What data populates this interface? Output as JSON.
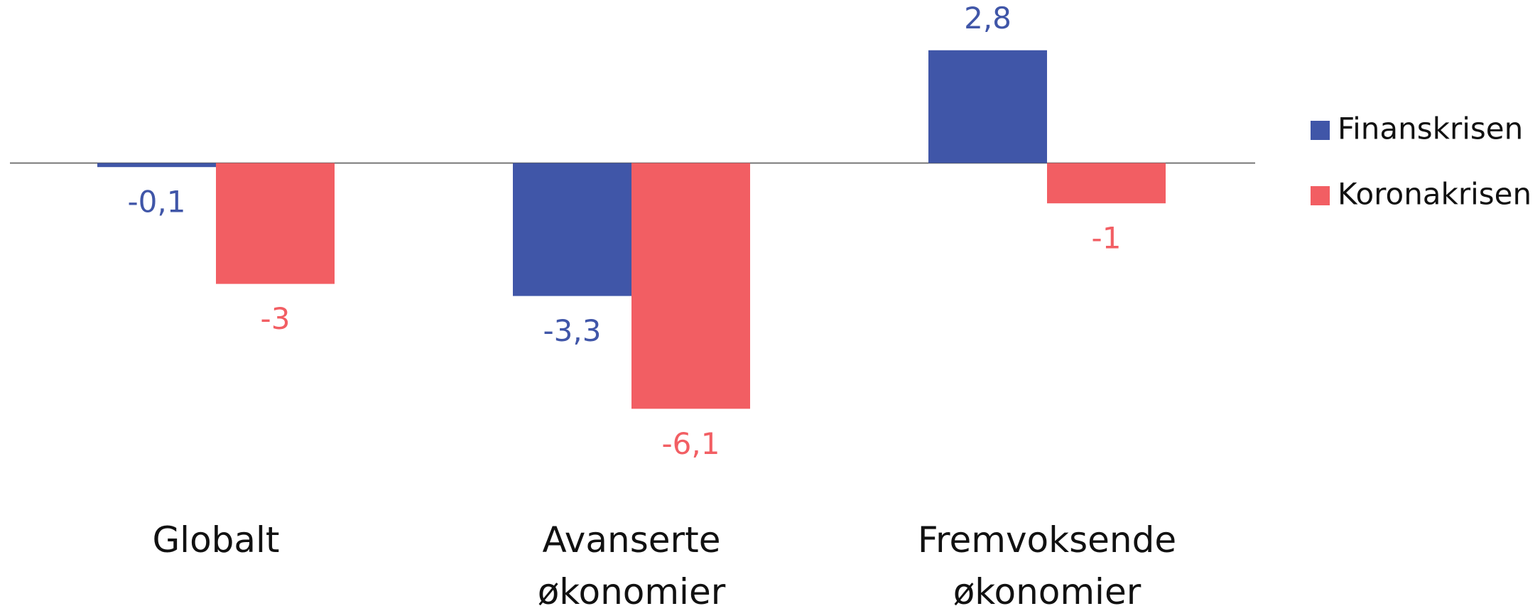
{
  "chart_data": {
    "type": "bar",
    "categories": [
      "Globalt",
      "Avanserte økonomier",
      "Fremvoksende økonomier"
    ],
    "series": [
      {
        "name": "Finanskrisen",
        "color": "#4056a8",
        "values": [
          -0.1,
          -3.3,
          2.8
        ],
        "value_labels": [
          "-0,1",
          "-3,3",
          "2,8"
        ]
      },
      {
        "name": "Koronakrisen",
        "color": "#f25e63",
        "values": [
          -3,
          -6.1,
          -1
        ],
        "value_labels": [
          "-3",
          "-6,1",
          "-1"
        ]
      }
    ],
    "legend": "right"
  }
}
